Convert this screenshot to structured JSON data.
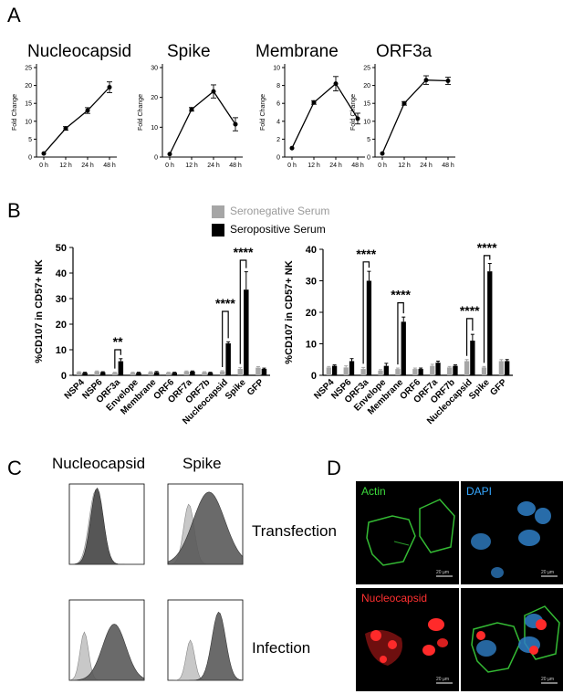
{
  "panels": {
    "a": {
      "letter": "A",
      "charts": [
        {
          "title": "Nucleocapsid",
          "ylabel": "Fold Change",
          "x": [
            "0 h",
            "12 h",
            "24 h",
            "48 h"
          ],
          "values": [
            1,
            8,
            13,
            19.5
          ],
          "errors": [
            0,
            0.5,
            0.8,
            1.5
          ],
          "ylim": [
            0,
            25
          ],
          "yticks": [
            "0",
            "5",
            "10",
            "15",
            "20",
            "25"
          ]
        },
        {
          "title": "Spike",
          "ylabel": "Fold Change",
          "x": [
            "0 h",
            "12 h",
            "24 h",
            "48 h"
          ],
          "values": [
            1,
            16,
            22,
            11
          ],
          "errors": [
            0,
            0.6,
            2.2,
            2.2
          ],
          "ylim": [
            0,
            30
          ],
          "yticks": [
            "0",
            "10",
            "20",
            "30"
          ]
        },
        {
          "title": "Membrane",
          "ylabel": "Fold Change",
          "x": [
            "0 h",
            "12 h",
            "24 h",
            "48 h"
          ],
          "values": [
            1,
            6.1,
            8.2,
            4.3
          ],
          "errors": [
            0,
            0.2,
            0.8,
            0.6
          ],
          "ylim": [
            0,
            10
          ],
          "yticks": [
            "0",
            "2",
            "4",
            "6",
            "8",
            "10"
          ]
        },
        {
          "title": "ORF3a",
          "ylabel": "Fold Change",
          "x": [
            "0 h",
            "12 h",
            "24 h",
            "48 h"
          ],
          "values": [
            1,
            15,
            21.5,
            21.3
          ],
          "errors": [
            0,
            0.5,
            1.2,
            1.0
          ],
          "ylim": [
            0,
            25
          ],
          "yticks": [
            "0",
            "5",
            "10",
            "15",
            "20",
            "25"
          ]
        }
      ]
    },
    "b": {
      "letter": "B",
      "legend": [
        {
          "name": "Seronegative Serum",
          "color": "#a6a6a6"
        },
        {
          "name": "Seropositive Serum",
          "color": "#000000"
        }
      ],
      "charts": [
        {
          "ylabel": "%CD107 in CD57+ NK",
          "ylim": [
            0,
            50
          ],
          "yticks": [
            "0",
            "10",
            "20",
            "30",
            "40",
            "50"
          ],
          "categories": [
            "NSP4",
            "NSP6",
            "ORF3a",
            "Envelope",
            "Membrane",
            "ORF6",
            "ORF7a",
            "ORF7b",
            "Nucleocapsid",
            "Spike",
            "GFP"
          ],
          "series": [
            {
              "name": "Seronegative Serum",
              "values": [
                1.2,
                1.5,
                1.0,
                1.0,
                1.2,
                1.0,
                1.5,
                1.2,
                1.5,
                2.5,
                3.0
              ],
              "errors": [
                0.2,
                0.2,
                0.2,
                0.2,
                0.2,
                0.2,
                0.2,
                0.2,
                0.3,
                0.5,
                0.4
              ]
            },
            {
              "name": "Seropositive Serum",
              "values": [
                1.0,
                1.2,
                5.5,
                1.0,
                1.2,
                1.0,
                1.5,
                1.0,
                12.5,
                33.5,
                2.5
              ],
              "errors": [
                0.2,
                0.2,
                1.0,
                0.2,
                0.3,
                0.2,
                0.2,
                0.2,
                0.6,
                7.0,
                0.3
              ]
            }
          ],
          "significance": [
            {
              "label": "**",
              "index": 2,
              "y": 10
            },
            {
              "label": "****",
              "index": 8,
              "y": 25
            },
            {
              "label": "****",
              "index": 9,
              "y": 45
            }
          ]
        },
        {
          "ylabel": "%CD107 in CD57+ NK",
          "ylim": [
            0,
            40
          ],
          "yticks": [
            "0",
            "10",
            "20",
            "30",
            "40"
          ],
          "categories": [
            "NSP4",
            "NSP6",
            "ORF3a",
            "Envelope",
            "Membrane",
            "ORF6",
            "ORF7a",
            "ORF7b",
            "Nucleocapsid",
            "Spike",
            "GFP"
          ],
          "series": [
            {
              "name": "Seronegative Serum",
              "values": [
                2.5,
                2.5,
                2.0,
                1.5,
                2.0,
                2.0,
                3.0,
                2.5,
                4.5,
                2.5,
                4.5
              ],
              "errors": [
                0.3,
                0.5,
                0.5,
                0.3,
                0.3,
                0.3,
                0.5,
                0.3,
                0.5,
                0.3,
                0.5
              ]
            },
            {
              "name": "Seropositive Serum",
              "values": [
                3.0,
                4.5,
                30.0,
                3.0,
                17.0,
                2.0,
                4.0,
                3.0,
                11.0,
                33.0,
                4.5
              ],
              "errors": [
                0.3,
                0.8,
                3.0,
                0.8,
                1.5,
                0.3,
                0.5,
                0.3,
                2.0,
                2.5,
                0.5
              ]
            }
          ],
          "significance": [
            {
              "label": "****",
              "index": 2,
              "y": 36
            },
            {
              "label": "****",
              "index": 4,
              "y": 23
            },
            {
              "label": "****",
              "index": 8,
              "y": 18
            },
            {
              "label": "****",
              "index": 9,
              "y": 38
            }
          ]
        }
      ]
    },
    "c": {
      "letter": "C",
      "columns": [
        "Nucleocapsid",
        "Spike"
      ],
      "rows": [
        "Transfection",
        "Infection"
      ]
    },
    "d": {
      "letter": "D",
      "labels": {
        "actin": "Actin",
        "dapi": "DAPI",
        "nucleocapsid": "Nucleocapsid"
      },
      "scale": "20 µm",
      "colors": {
        "actin": "#3ddc3d",
        "dapi": "#35a7ff",
        "nucleocapsid": "#ff2a2a"
      }
    }
  }
}
